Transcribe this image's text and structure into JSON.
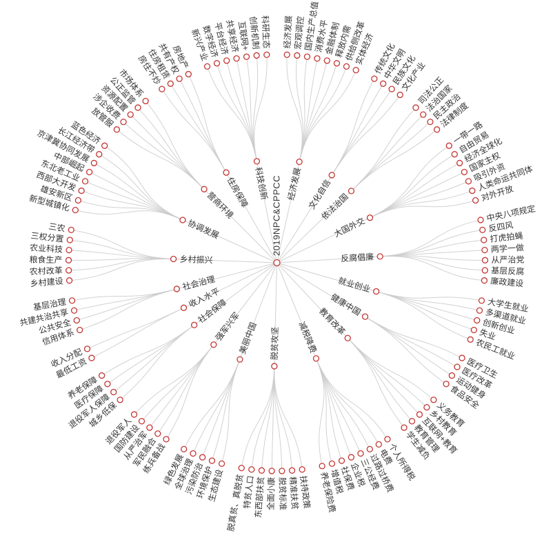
{
  "chart": {
    "type": "radial-tree",
    "root_label": "2019NPC&CPPCC",
    "branches": [
      {
        "label": "经济发展",
        "children": [
          "经济发展",
          "宏观调控",
          "国内生产总值",
          "消费水平",
          "金融体制",
          "释放内需",
          "供给侧改革",
          "实体经济"
        ]
      },
      {
        "label": "文化自信",
        "children": [
          "传统文化",
          "中华文明",
          "民族文化",
          "文化产业"
        ]
      },
      {
        "label": "依法治国",
        "children": [
          "司法公正",
          "法治国家",
          "民主政治",
          "法律制度"
        ]
      },
      {
        "label": "大国外交",
        "children": [
          "一带一路",
          "自由贸易",
          "经济全球化",
          "国家主权",
          "吸引外资",
          "人类命运共同体",
          "对外开放"
        ]
      },
      {
        "label": "反腐倡廉",
        "children": [
          "中央八项规定",
          "反四风",
          "打虎拍蝇",
          "两学一做",
          "从严治党",
          "基层反腐",
          "廉政建设"
        ]
      },
      {
        "label": "就业创业",
        "children": [
          "大学生就业",
          "多渠道就业",
          "创新创业",
          "失业",
          "农民工就业"
        ]
      },
      {
        "label": "健康中国",
        "children": [
          "医疗卫生",
          "医疗改革",
          "运动健身",
          "食品安全"
        ]
      },
      {
        "label": "教育改革",
        "children": [
          "义务教育",
          "乡村教育",
          "互联网+教育",
          "教育管理",
          "学生减负"
        ]
      },
      {
        "label": "减税降费",
        "children": [
          "个人所得税",
          "电费",
          "过路过桥费",
          "三公经费",
          "企业税",
          "社保费",
          "增值税",
          "养老保险费"
        ]
      },
      {
        "label": "脱贫攻坚",
        "children": [
          "扶持政策",
          "精准扶贫",
          "脱贫标准",
          "全面小康",
          "东西部扶贫",
          "特贫人口",
          "脱真贫、真脱贫"
        ]
      },
      {
        "label": "美丽中国",
        "children": [
          "生态建设",
          "环境保护",
          "污染防治",
          "全球治理",
          "绿色发展"
        ]
      },
      {
        "label": "强军兴军",
        "children": [
          "练兵备战",
          "军民融合",
          "从严治军",
          "国防建设",
          "退役军人"
        ]
      },
      {
        "label": "社会保障",
        "children": [
          "城乡低保",
          "退役军人保障",
          "医疗保障",
          "养老保障"
        ]
      },
      {
        "label": "收入水平",
        "children": [
          "最低工资",
          "收入分配"
        ]
      },
      {
        "label": "社会治理",
        "children": [
          "信用体系",
          "公共安全",
          "共建共治共享",
          "基层治理"
        ]
      },
      {
        "label": "乡村振兴",
        "children": [
          "乡村建设",
          "农村改革",
          "粮食生产",
          "农业科技",
          "三权分置",
          "三农"
        ]
      },
      {
        "label": "协调发展",
        "children": [
          "新型城镇化",
          "雄安新区",
          "西部大开发",
          "东北老工业",
          "中部崛起",
          "京津冀协同发展",
          "长江经济带",
          "蓝色经济"
        ]
      },
      {
        "label": "营商环境",
        "children": [
          "放管服",
          "涉企收费",
          "资源配置",
          "公正监管",
          "市场体系"
        ]
      },
      {
        "label": "住房保障",
        "children": [
          "房住不炒",
          "住房租赁",
          "共有产权",
          "房地产"
        ]
      },
      {
        "label": "科技创新",
        "children": [
          "新兴产业",
          "数字经济",
          "平台经济",
          "共享经济",
          "互联网+",
          "创新机制",
          "科研生态"
        ]
      }
    ],
    "colors": {
      "node_stroke": "#c23531",
      "node_fill": "#ffffff",
      "link": "#cccccc",
      "text": "#333333",
      "background": "#ffffff"
    }
  }
}
